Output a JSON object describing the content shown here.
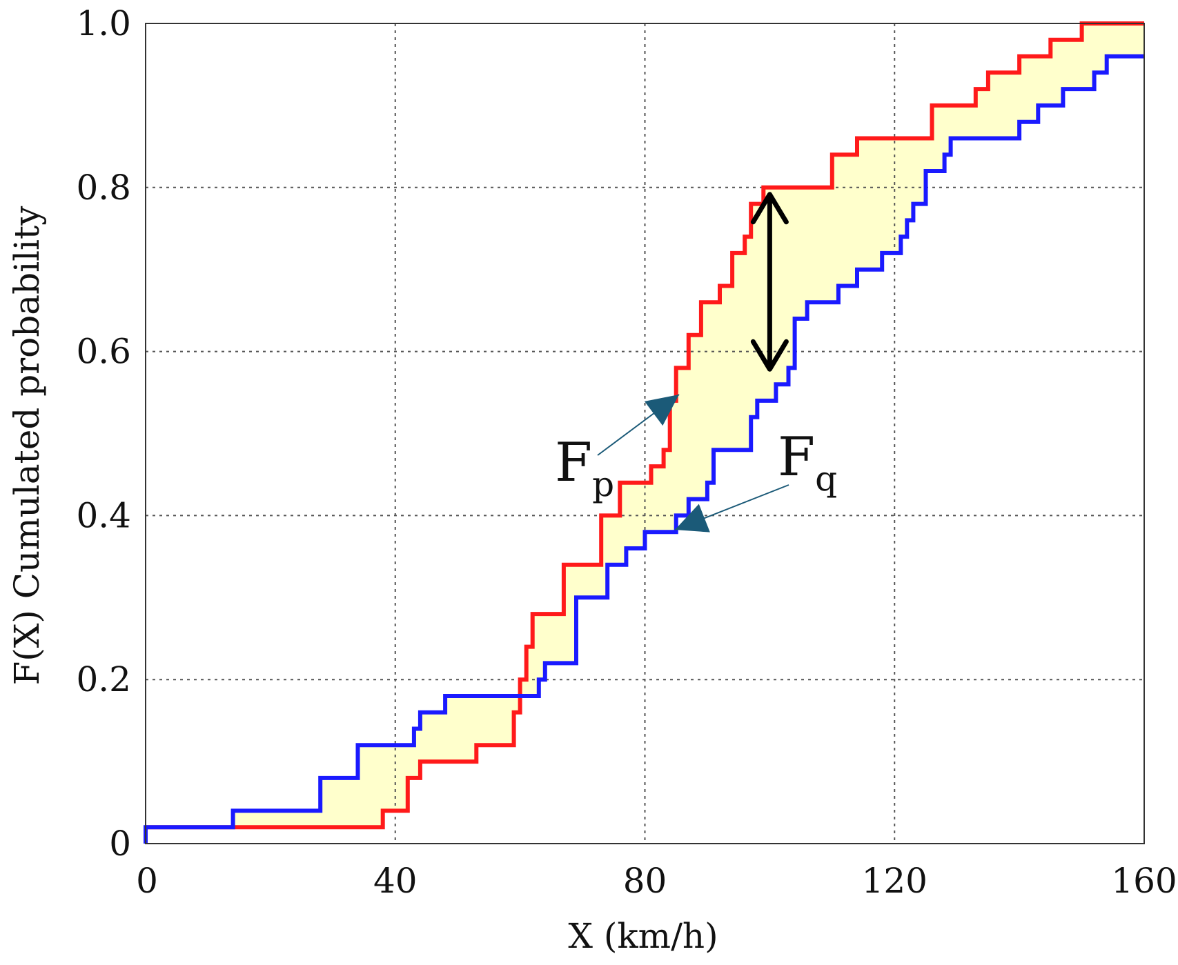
{
  "chart_data": {
    "type": "line",
    "subtype": "step",
    "xlabel": "X (km/h)",
    "ylabel": "F(X) Cumulated probability",
    "xlim": [
      0,
      160
    ],
    "ylim": [
      0,
      1.0
    ],
    "x_ticks": [
      "0",
      "40",
      "80",
      "120",
      "160"
    ],
    "x_tick_values": [
      0,
      40,
      80,
      120,
      160
    ],
    "y_ticks": [
      "0",
      "0.2",
      "0.4",
      "0.6",
      "0.8",
      "1.0"
    ],
    "y_tick_values": [
      0,
      0.2,
      0.4,
      0.6,
      0.8,
      1.0
    ],
    "grid": true,
    "grid_style": "dotted",
    "series": [
      {
        "label_main": "F",
        "label_sub": "p",
        "color": "#ff1a1a",
        "points": [
          [
            0,
            0.02
          ],
          [
            38,
            0.02
          ],
          [
            38,
            0.04
          ],
          [
            42,
            0.04
          ],
          [
            42,
            0.08
          ],
          [
            44,
            0.08
          ],
          [
            44,
            0.1
          ],
          [
            53,
            0.1
          ],
          [
            53,
            0.12
          ],
          [
            59,
            0.12
          ],
          [
            59,
            0.16
          ],
          [
            60,
            0.16
          ],
          [
            60,
            0.2
          ],
          [
            61,
            0.2
          ],
          [
            61,
            0.24
          ],
          [
            62,
            0.24
          ],
          [
            62,
            0.28
          ],
          [
            67,
            0.28
          ],
          [
            67,
            0.34
          ],
          [
            73,
            0.34
          ],
          [
            73,
            0.4
          ],
          [
            76,
            0.4
          ],
          [
            76,
            0.44
          ],
          [
            81,
            0.44
          ],
          [
            81,
            0.46
          ],
          [
            83,
            0.46
          ],
          [
            83,
            0.48
          ],
          [
            84,
            0.48
          ],
          [
            84,
            0.54
          ],
          [
            85,
            0.54
          ],
          [
            85,
            0.58
          ],
          [
            87,
            0.58
          ],
          [
            87,
            0.62
          ],
          [
            89,
            0.62
          ],
          [
            89,
            0.66
          ],
          [
            92,
            0.66
          ],
          [
            92,
            0.68
          ],
          [
            94,
            0.68
          ],
          [
            94,
            0.72
          ],
          [
            96,
            0.72
          ],
          [
            96,
            0.74
          ],
          [
            97,
            0.74
          ],
          [
            97,
            0.78
          ],
          [
            99,
            0.78
          ],
          [
            99,
            0.8
          ],
          [
            110,
            0.8
          ],
          [
            110,
            0.84
          ],
          [
            114,
            0.84
          ],
          [
            114,
            0.86
          ],
          [
            126,
            0.86
          ],
          [
            126,
            0.9
          ],
          [
            133,
            0.9
          ],
          [
            133,
            0.92
          ],
          [
            135,
            0.92
          ],
          [
            135,
            0.94
          ],
          [
            140,
            0.94
          ],
          [
            140,
            0.96
          ],
          [
            145,
            0.96
          ],
          [
            145,
            0.98
          ],
          [
            150,
            0.98
          ],
          [
            150,
            1.0
          ],
          [
            160,
            1.0
          ]
        ]
      },
      {
        "label_main": "F",
        "label_sub": "q",
        "color": "#1a1aff",
        "points": [
          [
            0,
            0.0
          ],
          [
            0,
            0.02
          ],
          [
            14,
            0.02
          ],
          [
            14,
            0.04
          ],
          [
            28,
            0.04
          ],
          [
            28,
            0.08
          ],
          [
            34,
            0.08
          ],
          [
            34,
            0.12
          ],
          [
            43,
            0.12
          ],
          [
            43,
            0.14
          ],
          [
            44,
            0.14
          ],
          [
            44,
            0.16
          ],
          [
            48,
            0.16
          ],
          [
            48,
            0.18
          ],
          [
            63,
            0.18
          ],
          [
            63,
            0.2
          ],
          [
            64,
            0.2
          ],
          [
            64,
            0.22
          ],
          [
            69,
            0.22
          ],
          [
            69,
            0.3
          ],
          [
            74,
            0.3
          ],
          [
            74,
            0.34
          ],
          [
            77,
            0.34
          ],
          [
            77,
            0.36
          ],
          [
            80,
            0.36
          ],
          [
            80,
            0.38
          ],
          [
            85,
            0.38
          ],
          [
            85,
            0.4
          ],
          [
            87,
            0.4
          ],
          [
            87,
            0.42
          ],
          [
            90,
            0.42
          ],
          [
            90,
            0.44
          ],
          [
            91,
            0.44
          ],
          [
            91,
            0.48
          ],
          [
            97,
            0.48
          ],
          [
            97,
            0.52
          ],
          [
            98,
            0.52
          ],
          [
            98,
            0.54
          ],
          [
            101,
            0.54
          ],
          [
            101,
            0.56
          ],
          [
            103,
            0.56
          ],
          [
            103,
            0.58
          ],
          [
            104,
            0.58
          ],
          [
            104,
            0.64
          ],
          [
            106,
            0.64
          ],
          [
            106,
            0.66
          ],
          [
            111,
            0.66
          ],
          [
            111,
            0.68
          ],
          [
            114,
            0.68
          ],
          [
            114,
            0.7
          ],
          [
            118,
            0.7
          ],
          [
            118,
            0.72
          ],
          [
            121,
            0.72
          ],
          [
            121,
            0.74
          ],
          [
            122,
            0.74
          ],
          [
            122,
            0.76
          ],
          [
            123,
            0.76
          ],
          [
            123,
            0.78
          ],
          [
            125,
            0.78
          ],
          [
            125,
            0.82
          ],
          [
            128,
            0.82
          ],
          [
            128,
            0.84
          ],
          [
            129,
            0.84
          ],
          [
            129,
            0.86
          ],
          [
            140,
            0.86
          ],
          [
            140,
            0.88
          ],
          [
            143,
            0.88
          ],
          [
            143,
            0.9
          ],
          [
            147,
            0.9
          ],
          [
            147,
            0.92
          ],
          [
            152,
            0.92
          ],
          [
            152,
            0.94
          ],
          [
            154,
            0.94
          ],
          [
            154,
            0.96
          ],
          [
            160,
            0.96
          ]
        ]
      }
    ],
    "fill_between": {
      "color": "#ffffcc"
    },
    "double_arrow": {
      "x": 100,
      "y_from": 0.57,
      "y_to": 0.8,
      "color": "#000000"
    },
    "label_arrow_color": "#1b5a78"
  }
}
